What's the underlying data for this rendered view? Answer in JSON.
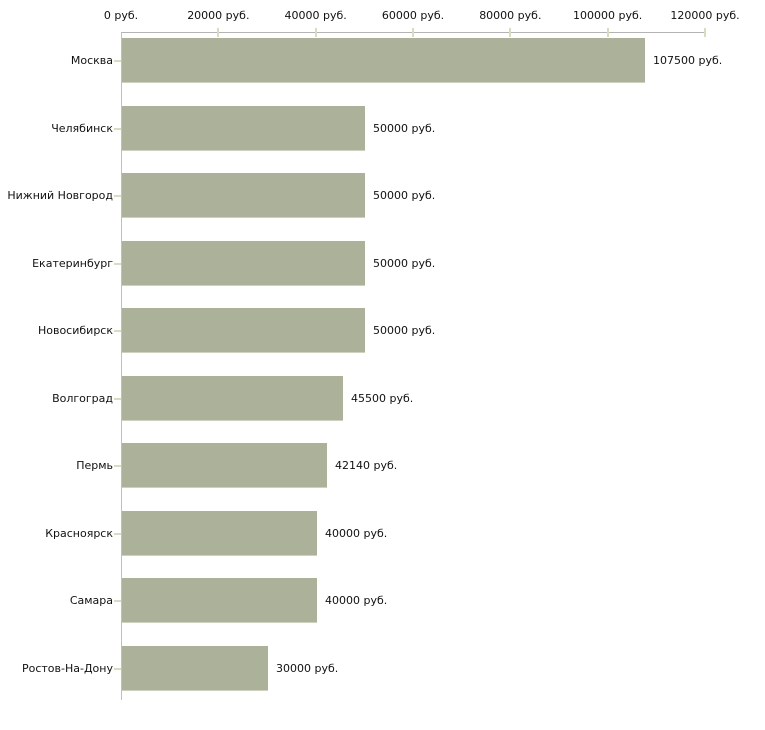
{
  "chart_data": {
    "type": "bar",
    "orientation": "horizontal",
    "title": "",
    "categories": [
      "Москва",
      "Челябинск",
      "Нижний Новгород",
      "Екатеринбург",
      "Новосибирск",
      "Волгоград",
      "Пермь",
      "Красноярск",
      "Самара",
      "Ростов-На-Дону"
    ],
    "values": [
      107500,
      50000,
      50000,
      50000,
      50000,
      45500,
      42140,
      40000,
      40000,
      30000
    ],
    "value_labels": [
      "107500 руб.",
      "50000 руб.",
      "50000 руб.",
      "50000 руб.",
      "50000 руб.",
      "45500 руб.",
      "42140 руб.",
      "40000 руб.",
      "40000 руб.",
      "30000 руб."
    ],
    "x_axis": {
      "position": "top",
      "min": 0,
      "max": 120000,
      "tick_interval": 20000,
      "tick_values": [
        0,
        20000,
        40000,
        60000,
        80000,
        100000,
        120000
      ],
      "tick_labels": [
        "0 руб.",
        "20000 руб.",
        "40000 руб.",
        "60000 руб.",
        "80000 руб.",
        "100000 руб.",
        "120000 руб."
      ],
      "unit_suffix": "руб."
    },
    "legend": false,
    "grid": false,
    "colors": {
      "bar": "#acb199",
      "bar_bottom_edge": "#cdd1c0",
      "axis_line": "#b4b4b4",
      "tick_mark": "#d9dcc1",
      "text": "#111111",
      "background": "#ffffff"
    }
  }
}
